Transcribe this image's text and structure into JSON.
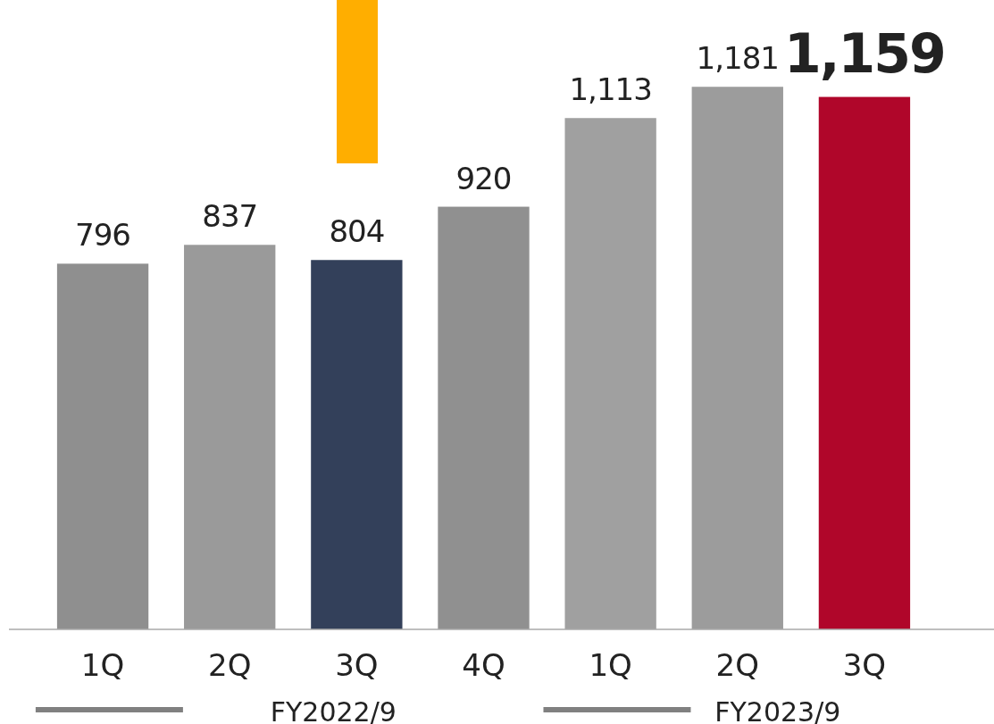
{
  "chart_data": {
    "type": "bar",
    "categories": [
      "1Q",
      "2Q",
      "3Q",
      "4Q",
      "1Q",
      "2Q",
      "3Q"
    ],
    "values": [
      796,
      837,
      804,
      920,
      1113,
      1181,
      1159
    ],
    "colors": [
      "#8f8f8f",
      "#9a9a9a",
      "#33405a",
      "#909090",
      "#a0a0a0",
      "#9c9c9c",
      "#b0062a"
    ],
    "value_labels": [
      "796",
      "837",
      "804",
      "920",
      "1,113",
      "1,181",
      "1,159"
    ],
    "annotations": [
      "FY2022/9",
      "FY2023/9"
    ]
  }
}
